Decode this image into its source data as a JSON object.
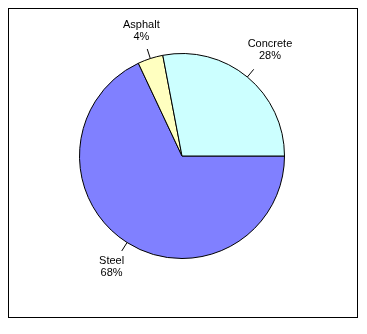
{
  "chart_data": {
    "type": "pie",
    "categories": [
      "Steel",
      "Asphalt",
      "Concrete"
    ],
    "values": [
      68,
      4,
      28
    ],
    "value_labels": [
      "68%",
      "4%",
      "28%"
    ],
    "colors": [
      "#8080ff",
      "#ffffc0",
      "#ccffff"
    ],
    "data_labels": true
  }
}
